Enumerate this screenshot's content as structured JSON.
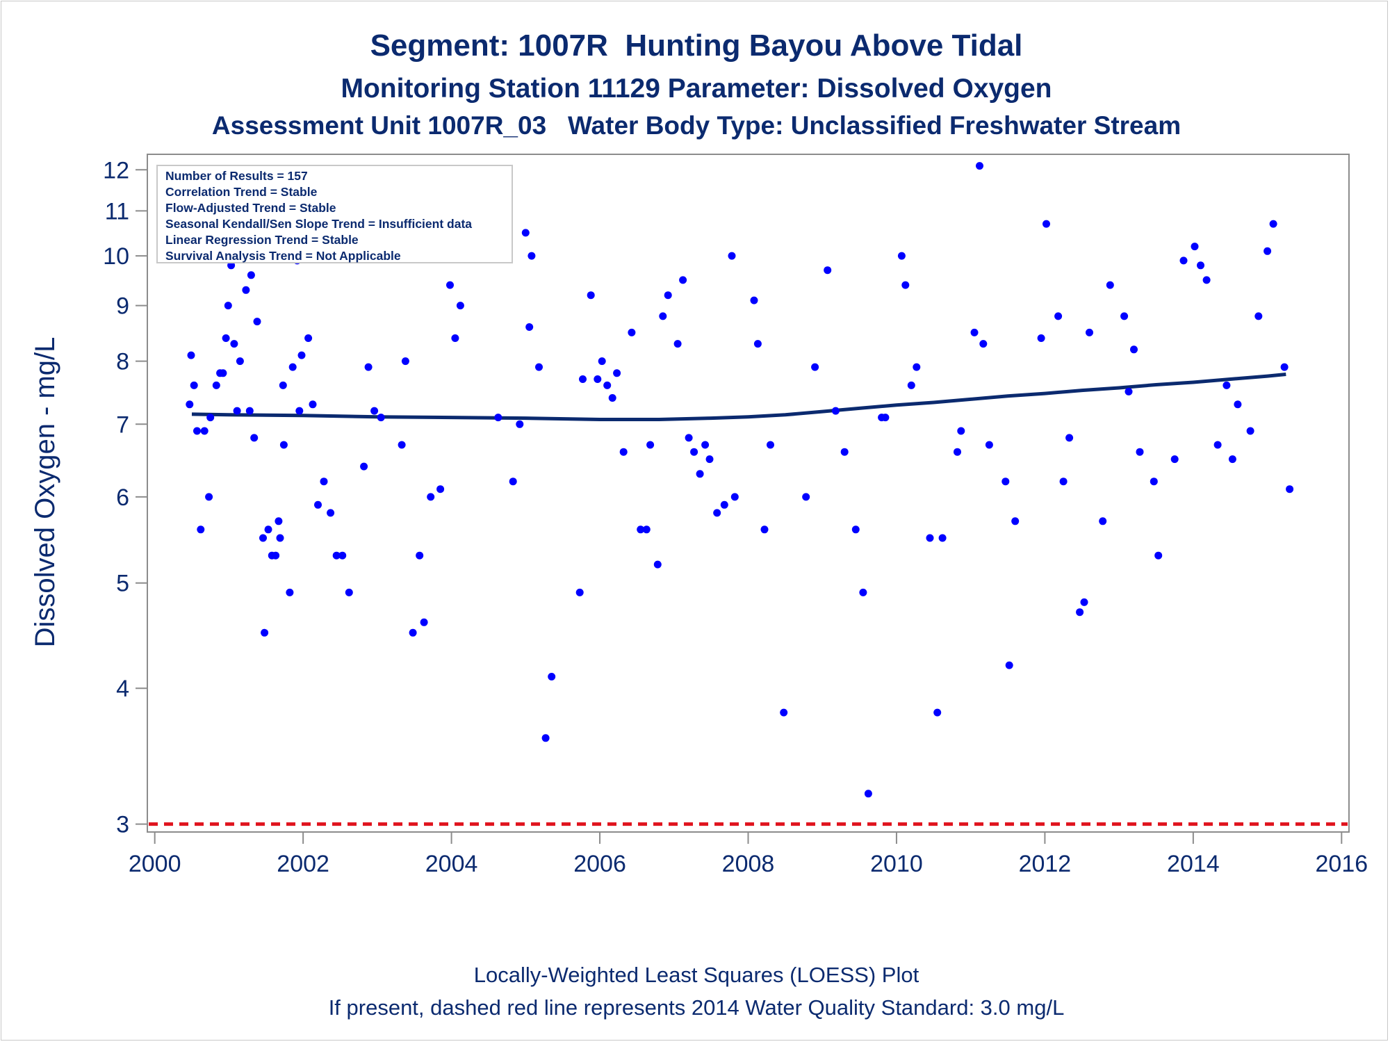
{
  "chart_data": {
    "type": "scatter",
    "title": "Segment: 1007R  Hunting Bayou Above Tidal",
    "subtitle": "Monitoring Station 11129 Parameter: Dissolved Oxygen",
    "subtitle2": "Assessment Unit 1007R_03   Water Body Type: Unclassified Freshwater Stream",
    "xlabel": "",
    "ylabel": "Dissolved Oxygen - mg/L",
    "x_scale": "linear",
    "y_scale": "log",
    "xlim": [
      1999.9,
      2016.1
    ],
    "ylim": [
      2.95,
      12.4
    ],
    "xticks": [
      2000,
      2002,
      2004,
      2006,
      2008,
      2010,
      2012,
      2014,
      2016
    ],
    "yticks": [
      3,
      4,
      5,
      6,
      7,
      8,
      9,
      10,
      11,
      12
    ],
    "stats_box": [
      "Number of Results = 157",
      "Correlation Trend = Stable",
      "Flow-Adjusted Trend = Stable",
      "Seasonal Kendall/Sen Slope Trend = Insufficient data",
      "Linear Regression Trend = Stable",
      "Survival Analysis Trend = Not Applicable"
    ],
    "footnote1": "Locally-Weighted Least Squares (LOESS) Plot",
    "footnote2": "If present, dashed red line represents 2014 Water Quality Standard: 3.0 mg/L",
    "colors": {
      "points": "#0000ff",
      "loess": "#0b2a6f",
      "standard": "#e0141e",
      "text": "#0b2a6f",
      "axis": "#8c8c8c"
    },
    "points": [
      {
        "x": 2000.47,
        "y": 7.3
      },
      {
        "x": 2000.49,
        "y": 8.1
      },
      {
        "x": 2000.53,
        "y": 7.6
      },
      {
        "x": 2000.57,
        "y": 6.9
      },
      {
        "x": 2000.62,
        "y": 5.6
      },
      {
        "x": 2000.67,
        "y": 6.9
      },
      {
        "x": 2000.73,
        "y": 6.0
      },
      {
        "x": 2000.75,
        "y": 7.1
      },
      {
        "x": 2000.83,
        "y": 7.6
      },
      {
        "x": 2000.88,
        "y": 7.8
      },
      {
        "x": 2000.92,
        "y": 7.8
      },
      {
        "x": 2000.96,
        "y": 8.4
      },
      {
        "x": 2000.99,
        "y": 9.0
      },
      {
        "x": 2001.03,
        "y": 9.8
      },
      {
        "x": 2001.07,
        "y": 8.3
      },
      {
        "x": 2001.11,
        "y": 7.2
      },
      {
        "x": 2001.15,
        "y": 8.0
      },
      {
        "x": 2001.23,
        "y": 9.3
      },
      {
        "x": 2001.28,
        "y": 7.2
      },
      {
        "x": 2001.3,
        "y": 9.6
      },
      {
        "x": 2001.34,
        "y": 6.8
      },
      {
        "x": 2001.38,
        "y": 8.7
      },
      {
        "x": 2001.46,
        "y": 5.5
      },
      {
        "x": 2001.48,
        "y": 4.5
      },
      {
        "x": 2001.53,
        "y": 5.6
      },
      {
        "x": 2001.58,
        "y": 5.3
      },
      {
        "x": 2001.63,
        "y": 5.3
      },
      {
        "x": 2001.67,
        "y": 5.7
      },
      {
        "x": 2001.69,
        "y": 5.5
      },
      {
        "x": 2001.73,
        "y": 7.6
      },
      {
        "x": 2001.74,
        "y": 6.7
      },
      {
        "x": 2001.82,
        "y": 4.9
      },
      {
        "x": 2001.86,
        "y": 7.9
      },
      {
        "x": 2001.92,
        "y": 9.9
      },
      {
        "x": 2001.95,
        "y": 7.2
      },
      {
        "x": 2001.98,
        "y": 8.1
      },
      {
        "x": 2002.07,
        "y": 8.4
      },
      {
        "x": 2002.13,
        "y": 7.3
      },
      {
        "x": 2002.2,
        "y": 5.9
      },
      {
        "x": 2002.28,
        "y": 6.2
      },
      {
        "x": 2002.37,
        "y": 5.8
      },
      {
        "x": 2002.45,
        "y": 5.3
      },
      {
        "x": 2002.53,
        "y": 5.3
      },
      {
        "x": 2002.62,
        "y": 4.9
      },
      {
        "x": 2002.82,
        "y": 6.4
      },
      {
        "x": 2002.88,
        "y": 7.9
      },
      {
        "x": 2002.96,
        "y": 7.2
      },
      {
        "x": 2003.05,
        "y": 7.1
      },
      {
        "x": 2003.15,
        "y": 10.9
      },
      {
        "x": 2003.33,
        "y": 6.7
      },
      {
        "x": 2003.38,
        "y": 8.0
      },
      {
        "x": 2003.48,
        "y": 4.5
      },
      {
        "x": 2003.57,
        "y": 5.3
      },
      {
        "x": 2003.63,
        "y": 4.6
      },
      {
        "x": 2003.72,
        "y": 6.0
      },
      {
        "x": 2003.85,
        "y": 6.1
      },
      {
        "x": 2003.98,
        "y": 9.4
      },
      {
        "x": 2004.05,
        "y": 8.4
      },
      {
        "x": 2004.12,
        "y": 9.0
      },
      {
        "x": 2004.63,
        "y": 7.1
      },
      {
        "x": 2004.83,
        "y": 6.2
      },
      {
        "x": 2004.92,
        "y": 7.0
      },
      {
        "x": 2005.0,
        "y": 10.5
      },
      {
        "x": 2005.05,
        "y": 8.6
      },
      {
        "x": 2005.08,
        "y": 10.0
      },
      {
        "x": 2005.18,
        "y": 7.9
      },
      {
        "x": 2005.27,
        "y": 3.6
      },
      {
        "x": 2005.35,
        "y": 4.1
      },
      {
        "x": 2005.73,
        "y": 4.9
      },
      {
        "x": 2005.77,
        "y": 7.7
      },
      {
        "x": 2005.88,
        "y": 9.2
      },
      {
        "x": 2005.97,
        "y": 7.7
      },
      {
        "x": 2006.03,
        "y": 8.0
      },
      {
        "x": 2006.1,
        "y": 7.6
      },
      {
        "x": 2006.17,
        "y": 7.4
      },
      {
        "x": 2006.23,
        "y": 7.8
      },
      {
        "x": 2006.32,
        "y": 6.6
      },
      {
        "x": 2006.43,
        "y": 8.5
      },
      {
        "x": 2006.55,
        "y": 5.6
      },
      {
        "x": 2006.63,
        "y": 5.6
      },
      {
        "x": 2006.68,
        "y": 6.7
      },
      {
        "x": 2006.78,
        "y": 5.2
      },
      {
        "x": 2006.85,
        "y": 8.8
      },
      {
        "x": 2006.92,
        "y": 9.2
      },
      {
        "x": 2007.05,
        "y": 8.3
      },
      {
        "x": 2007.12,
        "y": 9.5
      },
      {
        "x": 2007.2,
        "y": 6.8
      },
      {
        "x": 2007.27,
        "y": 6.6
      },
      {
        "x": 2007.35,
        "y": 6.3
      },
      {
        "x": 2007.42,
        "y": 6.7
      },
      {
        "x": 2007.48,
        "y": 6.5
      },
      {
        "x": 2007.58,
        "y": 5.8
      },
      {
        "x": 2007.68,
        "y": 5.9
      },
      {
        "x": 2007.78,
        "y": 10.0
      },
      {
        "x": 2007.82,
        "y": 6.0
      },
      {
        "x": 2008.08,
        "y": 9.1
      },
      {
        "x": 2008.13,
        "y": 8.3
      },
      {
        "x": 2008.22,
        "y": 5.6
      },
      {
        "x": 2008.3,
        "y": 6.7
      },
      {
        "x": 2008.48,
        "y": 3.8
      },
      {
        "x": 2008.78,
        "y": 6.0
      },
      {
        "x": 2008.9,
        "y": 7.9
      },
      {
        "x": 2009.07,
        "y": 9.7
      },
      {
        "x": 2009.18,
        "y": 7.2
      },
      {
        "x": 2009.3,
        "y": 6.6
      },
      {
        "x": 2009.45,
        "y": 5.6
      },
      {
        "x": 2009.55,
        "y": 4.9
      },
      {
        "x": 2009.62,
        "y": 3.2
      },
      {
        "x": 2009.8,
        "y": 7.1
      },
      {
        "x": 2009.85,
        "y": 7.1
      },
      {
        "x": 2010.07,
        "y": 10.0
      },
      {
        "x": 2010.12,
        "y": 9.4
      },
      {
        "x": 2010.2,
        "y": 7.6
      },
      {
        "x": 2010.27,
        "y": 7.9
      },
      {
        "x": 2010.45,
        "y": 5.5
      },
      {
        "x": 2010.55,
        "y": 3.8
      },
      {
        "x": 2010.62,
        "y": 5.5
      },
      {
        "x": 2010.82,
        "y": 6.6
      },
      {
        "x": 2010.87,
        "y": 6.9
      },
      {
        "x": 2011.05,
        "y": 8.5
      },
      {
        "x": 2011.12,
        "y": 12.1
      },
      {
        "x": 2011.17,
        "y": 8.3
      },
      {
        "x": 2011.25,
        "y": 6.7
      },
      {
        "x": 2011.47,
        "y": 6.2
      },
      {
        "x": 2011.52,
        "y": 4.2
      },
      {
        "x": 2011.6,
        "y": 5.7
      },
      {
        "x": 2011.95,
        "y": 8.4
      },
      {
        "x": 2012.02,
        "y": 10.7
      },
      {
        "x": 2012.18,
        "y": 8.8
      },
      {
        "x": 2012.25,
        "y": 6.2
      },
      {
        "x": 2012.33,
        "y": 6.8
      },
      {
        "x": 2012.47,
        "y": 4.7
      },
      {
        "x": 2012.53,
        "y": 4.8
      },
      {
        "x": 2012.6,
        "y": 8.5
      },
      {
        "x": 2012.78,
        "y": 5.7
      },
      {
        "x": 2012.88,
        "y": 9.4
      },
      {
        "x": 2013.07,
        "y": 8.8
      },
      {
        "x": 2013.13,
        "y": 7.5
      },
      {
        "x": 2013.2,
        "y": 8.2
      },
      {
        "x": 2013.28,
        "y": 6.6
      },
      {
        "x": 2013.47,
        "y": 6.2
      },
      {
        "x": 2013.53,
        "y": 5.3
      },
      {
        "x": 2013.75,
        "y": 6.5
      },
      {
        "x": 2013.87,
        "y": 9.9
      },
      {
        "x": 2014.02,
        "y": 10.2
      },
      {
        "x": 2014.1,
        "y": 9.8
      },
      {
        "x": 2014.18,
        "y": 9.5
      },
      {
        "x": 2014.33,
        "y": 6.7
      },
      {
        "x": 2014.45,
        "y": 7.6
      },
      {
        "x": 2014.53,
        "y": 6.5
      },
      {
        "x": 2014.6,
        "y": 7.3
      },
      {
        "x": 2014.77,
        "y": 6.9
      },
      {
        "x": 2014.88,
        "y": 8.8
      },
      {
        "x": 2015.0,
        "y": 10.1
      },
      {
        "x": 2015.08,
        "y": 10.7
      },
      {
        "x": 2015.23,
        "y": 7.9
      },
      {
        "x": 2015.3,
        "y": 6.1
      }
    ],
    "loess": [
      {
        "x": 2000.5,
        "y": 7.15
      },
      {
        "x": 2001.0,
        "y": 7.14
      },
      {
        "x": 2002.0,
        "y": 7.13
      },
      {
        "x": 2003.0,
        "y": 7.11
      },
      {
        "x": 2004.0,
        "y": 7.1
      },
      {
        "x": 2005.0,
        "y": 7.09
      },
      {
        "x": 2006.0,
        "y": 7.07
      },
      {
        "x": 2006.8,
        "y": 7.07
      },
      {
        "x": 2007.5,
        "y": 7.09
      },
      {
        "x": 2008.0,
        "y": 7.11
      },
      {
        "x": 2008.5,
        "y": 7.14
      },
      {
        "x": 2009.0,
        "y": 7.19
      },
      {
        "x": 2009.5,
        "y": 7.24
      },
      {
        "x": 2010.0,
        "y": 7.29
      },
      {
        "x": 2010.5,
        "y": 7.33
      },
      {
        "x": 2011.0,
        "y": 7.38
      },
      {
        "x": 2011.5,
        "y": 7.43
      },
      {
        "x": 2012.0,
        "y": 7.47
      },
      {
        "x": 2012.5,
        "y": 7.52
      },
      {
        "x": 2013.0,
        "y": 7.56
      },
      {
        "x": 2013.5,
        "y": 7.61
      },
      {
        "x": 2014.0,
        "y": 7.65
      },
      {
        "x": 2014.5,
        "y": 7.7
      },
      {
        "x": 2015.0,
        "y": 7.75
      },
      {
        "x": 2015.25,
        "y": 7.78
      }
    ],
    "standard": 3.0
  }
}
